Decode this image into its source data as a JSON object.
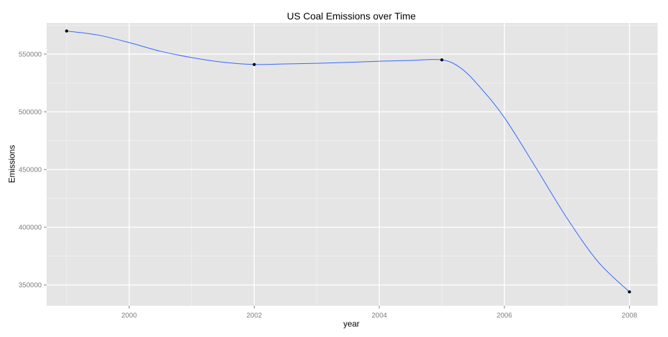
{
  "chart_data": {
    "type": "line",
    "title": "US Coal Emissions over Time",
    "xlabel": "year",
    "ylabel": "Emissions",
    "xlim": [
      1998.68,
      2008.45
    ],
    "ylim": [
      332000,
      577000
    ],
    "x_ticks": [
      2000,
      2002,
      2004,
      2006,
      2008
    ],
    "x_tick_labels": [
      "2000",
      "2002",
      "2004",
      "2006",
      "2008"
    ],
    "y_ticks": [
      350000,
      400000,
      450000,
      500000,
      550000
    ],
    "y_tick_labels": [
      "350000",
      "400000",
      "450000",
      "500000",
      "550000"
    ],
    "grid": true,
    "points": [
      {
        "x": 1999,
        "y": 570000
      },
      {
        "x": 2002,
        "y": 541000
      },
      {
        "x": 2005,
        "y": 545000
      },
      {
        "x": 2008,
        "y": 344000
      }
    ],
    "smooth_curve": [
      {
        "x": 1999.0,
        "y": 570000
      },
      {
        "x": 1999.5,
        "y": 566500
      },
      {
        "x": 2000.0,
        "y": 560000
      },
      {
        "x": 2000.5,
        "y": 552500
      },
      {
        "x": 2001.0,
        "y": 547000
      },
      {
        "x": 2001.5,
        "y": 543000
      },
      {
        "x": 2002.0,
        "y": 541000
      },
      {
        "x": 2002.5,
        "y": 541500
      },
      {
        "x": 2003.0,
        "y": 542000
      },
      {
        "x": 2003.5,
        "y": 542800
      },
      {
        "x": 2004.0,
        "y": 543800
      },
      {
        "x": 2004.5,
        "y": 544500
      },
      {
        "x": 2005.0,
        "y": 545000
      },
      {
        "x": 2005.3,
        "y": 538000
      },
      {
        "x": 2005.6,
        "y": 522000
      },
      {
        "x": 2006.0,
        "y": 495000
      },
      {
        "x": 2006.5,
        "y": 452000
      },
      {
        "x": 2007.0,
        "y": 408000
      },
      {
        "x": 2007.5,
        "y": 370000
      },
      {
        "x": 2008.0,
        "y": 344000
      }
    ],
    "colors": {
      "panel_background": "#e5e5e5",
      "grid_major": "#ffffff",
      "grid_minor": "#f2f2f2",
      "line": "#3366ff",
      "point": "#000000",
      "tick_label": "#7f7f7f",
      "text": "#000000"
    }
  }
}
